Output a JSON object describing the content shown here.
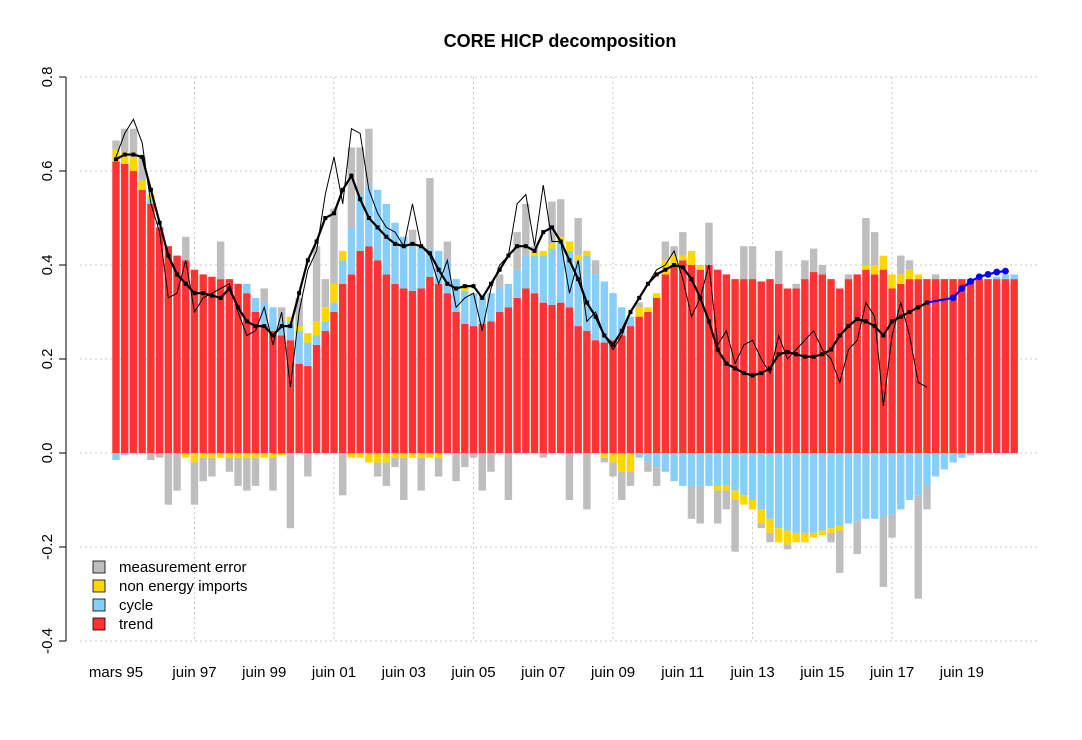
{
  "chart_data": {
    "type": "bar",
    "title": "CORE HICP decomposition",
    "xlabel": "",
    "ylabel": "",
    "ylim": [
      -0.4,
      0.8
    ],
    "yticks": [
      -0.4,
      -0.2,
      0.0,
      0.2,
      0.4,
      0.6,
      0.8
    ],
    "ytick_labels": [
      "-0.4",
      "-0.2",
      "0.0",
      "0.2",
      "0.4",
      "0.6",
      "0.8"
    ],
    "xtick_labels": [
      {
        "label": "mars 95",
        "index": 0
      },
      {
        "label": "juin 97",
        "index": 9
      },
      {
        "label": "juin 99",
        "index": 17
      },
      {
        "label": "juin 01",
        "index": 25
      },
      {
        "label": "juin 03",
        "index": 33
      },
      {
        "label": "juin 05",
        "index": 41
      },
      {
        "label": "juin 07",
        "index": 49
      },
      {
        "label": "juin 09",
        "index": 57
      },
      {
        "label": "juin 11",
        "index": 65
      },
      {
        "label": "juin 13",
        "index": 73
      },
      {
        "label": "juin 15",
        "index": 81
      },
      {
        "label": "juin 17",
        "index": 89
      },
      {
        "label": "juin 19",
        "index": 97
      }
    ],
    "grid": true,
    "legend_position": "bottom-left",
    "series": [
      {
        "name": "trend",
        "color": "#ff3333",
        "values": [
          0.62,
          0.615,
          0.6,
          0.56,
          0.53,
          0.48,
          0.44,
          0.42,
          0.41,
          0.39,
          0.38,
          0.375,
          0.37,
          0.37,
          0.36,
          0.34,
          0.3,
          0.27,
          0.26,
          0.25,
          0.24,
          0.19,
          0.185,
          0.23,
          0.26,
          0.3,
          0.36,
          0.38,
          0.43,
          0.44,
          0.41,
          0.38,
          0.36,
          0.35,
          0.345,
          0.35,
          0.375,
          0.36,
          0.34,
          0.3,
          0.275,
          0.27,
          0.275,
          0.28,
          0.3,
          0.31,
          0.33,
          0.35,
          0.34,
          0.32,
          0.315,
          0.32,
          0.31,
          0.27,
          0.26,
          0.24,
          0.235,
          0.24,
          0.25,
          0.27,
          0.29,
          0.3,
          0.33,
          0.38,
          0.4,
          0.41,
          0.4,
          0.39,
          0.4,
          0.39,
          0.38,
          0.37,
          0.37,
          0.37,
          0.365,
          0.37,
          0.36,
          0.35,
          0.35,
          0.37,
          0.385,
          0.38,
          0.37,
          0.35,
          0.37,
          0.38,
          0.39,
          0.38,
          0.39,
          0.35,
          0.36,
          0.37,
          0.37,
          0.37,
          0.37,
          0.37,
          0.37,
          0.37,
          0.37,
          0.37,
          0.37,
          0.37,
          0.37,
          0.37
        ]
      },
      {
        "name": "cycle",
        "color": "#87cefa",
        "values": [
          -0.015,
          -0.005,
          0,
          0,
          0.01,
          0,
          0,
          0,
          0,
          0,
          0,
          0,
          0,
          0,
          0,
          0.02,
          0.03,
          0.05,
          0.05,
          0.03,
          0.04,
          0.07,
          0.05,
          0.02,
          0.02,
          0.02,
          0.05,
          0.1,
          0.12,
          0.13,
          0.15,
          0.15,
          0.13,
          0.11,
          0.1,
          0.09,
          0.06,
          0.07,
          0.07,
          0.07,
          0.07,
          0.07,
          0.06,
          0.06,
          0.05,
          0.05,
          0.06,
          0.07,
          0.08,
          0.1,
          0.12,
          0.13,
          0.12,
          0.14,
          0.16,
          0.14,
          0.13,
          0.1,
          0.06,
          0.02,
          -0.01,
          -0.02,
          -0.03,
          -0.04,
          -0.06,
          -0.07,
          -0.07,
          -0.07,
          -0.07,
          -0.07,
          -0.07,
          -0.08,
          -0.09,
          -0.1,
          -0.12,
          -0.14,
          -0.16,
          -0.165,
          -0.17,
          -0.17,
          -0.17,
          -0.165,
          -0.16,
          -0.155,
          -0.15,
          -0.145,
          -0.14,
          -0.14,
          -0.135,
          -0.13,
          -0.12,
          -0.1,
          -0.09,
          -0.07,
          -0.05,
          -0.035,
          -0.02,
          -0.01,
          -0.005,
          0,
          0,
          0.005,
          0.01,
          0.01
        ]
      },
      {
        "name": "non energy imports",
        "color": "#ffd700",
        "values": [
          0.025,
          0.025,
          0.03,
          0.02,
          0.01,
          0,
          0,
          0,
          -0.01,
          -0.02,
          -0.01,
          -0.01,
          -0.01,
          -0.01,
          -0.01,
          -0.01,
          -0.01,
          -0.01,
          -0.01,
          -0.005,
          0.01,
          0.01,
          0.02,
          0.03,
          0.03,
          0.04,
          0.02,
          -0.01,
          -0.01,
          -0.02,
          -0.02,
          -0.02,
          -0.01,
          -0.01,
          -0.01,
          -0.01,
          -0.01,
          -0.01,
          0,
          0,
          0.01,
          0,
          0,
          0,
          0,
          0,
          0,
          0,
          0.01,
          0.01,
          0.01,
          0.01,
          0.02,
          0.01,
          0.01,
          0,
          -0.01,
          -0.02,
          -0.04,
          -0.04,
          0.02,
          0.01,
          0.01,
          0.03,
          0.02,
          0.01,
          0.03,
          0.01,
          0,
          -0.01,
          -0.01,
          -0.02,
          -0.02,
          -0.02,
          -0.03,
          -0.03,
          -0.03,
          -0.03,
          -0.02,
          -0.02,
          -0.01,
          -0.01,
          -0.01,
          -0.01,
          0,
          0,
          0.01,
          0.02,
          0.03,
          0.03,
          0.02,
          0.02,
          0.01,
          0,
          0,
          0,
          0,
          0,
          0,
          0,
          0,
          0,
          0,
          0
        ]
      },
      {
        "name": "measurement error",
        "color": "#bebebe",
        "values": [
          0.02,
          0.05,
          0.06,
          0.05,
          -0.015,
          -0.01,
          -0.11,
          -0.08,
          0.05,
          -0.09,
          -0.05,
          -0.04,
          0.08,
          -0.03,
          -0.06,
          -0.07,
          -0.06,
          0.03,
          -0.07,
          0.03,
          -0.16,
          0.06,
          -0.05,
          0.16,
          0.06,
          0.16,
          -0.09,
          0.17,
          0.1,
          0.12,
          -0.03,
          -0.05,
          -0.02,
          -0.09,
          0.03,
          -0.07,
          0.15,
          -0.04,
          0.04,
          -0.06,
          -0.03,
          -0.01,
          -0.08,
          -0.04,
          0.03,
          -0.1,
          0.08,
          0.11,
          0.01,
          -0.01,
          0.09,
          0.08,
          -0.1,
          0.08,
          -0.12,
          0.03,
          -0.01,
          -0.03,
          -0.06,
          -0.03,
          0.01,
          -0.02,
          -0.04,
          0.04,
          0.02,
          0.05,
          -0.07,
          -0.08,
          0.09,
          -0.07,
          -0.04,
          -0.11,
          0.07,
          0.07,
          -0.01,
          -0.02,
          0.07,
          -0.01,
          0.01,
          0.04,
          0.05,
          0.02,
          -0.02,
          -0.09,
          0.01,
          -0.07,
          0.1,
          0.07,
          -0.15,
          -0.05,
          0.04,
          0.02,
          -0.22,
          -0.05,
          0.01,
          0,
          0,
          0,
          0,
          0,
          0,
          0,
          0,
          0
        ]
      }
    ],
    "lines": [
      {
        "name": "smoothed",
        "color": "#000000",
        "values": [
          0.625,
          0.635,
          0.635,
          0.63,
          0.56,
          0.49,
          0.42,
          0.38,
          0.36,
          0.34,
          0.34,
          0.335,
          0.33,
          0.35,
          0.31,
          0.28,
          0.27,
          0.27,
          0.25,
          0.27,
          0.27,
          0.34,
          0.41,
          0.45,
          0.5,
          0.51,
          0.56,
          0.59,
          0.54,
          0.5,
          0.48,
          0.46,
          0.445,
          0.44,
          0.445,
          0.44,
          0.425,
          0.39,
          0.36,
          0.35,
          0.355,
          0.355,
          0.33,
          0.36,
          0.39,
          0.42,
          0.44,
          0.44,
          0.43,
          0.47,
          0.48,
          0.45,
          0.41,
          0.37,
          0.32,
          0.29,
          0.25,
          0.23,
          0.26,
          0.3,
          0.33,
          0.36,
          0.38,
          0.39,
          0.4,
          0.395,
          0.37,
          0.33,
          0.28,
          0.22,
          0.19,
          0.18,
          0.17,
          0.165,
          0.17,
          0.18,
          0.21,
          0.215,
          0.21,
          0.205,
          0.205,
          0.21,
          0.22,
          0.25,
          0.27,
          0.285,
          0.28,
          0.27,
          0.25,
          0.28,
          0.29,
          0.3,
          0.31,
          0.32
        ],
        "forecast": [
          {
            "index": 96,
            "value": 0.33
          },
          {
            "index": 97,
            "value": 0.35
          },
          {
            "index": 98,
            "value": 0.365
          },
          {
            "index": 99,
            "value": 0.375
          },
          {
            "index": 100,
            "value": 0.38
          },
          {
            "index": 101,
            "value": 0.385
          },
          {
            "index": 102,
            "value": 0.387
          }
        ],
        "forecast_color": "#0000ff"
      },
      {
        "name": "observed",
        "color": "#000000",
        "values": [
          0.63,
          0.68,
          0.71,
          0.66,
          0.53,
          0.47,
          0.33,
          0.34,
          0.41,
          0.3,
          0.33,
          0.34,
          0.35,
          0.36,
          0.3,
          0.25,
          0.26,
          0.31,
          0.23,
          0.3,
          0.14,
          0.3,
          0.39,
          0.43,
          0.55,
          0.63,
          0.53,
          0.69,
          0.68,
          0.56,
          0.51,
          0.48,
          0.47,
          0.44,
          0.53,
          0.44,
          0.42,
          0.36,
          0.41,
          0.31,
          0.33,
          0.34,
          0.26,
          0.35,
          0.4,
          0.42,
          0.53,
          0.55,
          0.44,
          0.57,
          0.45,
          0.45,
          0.34,
          0.41,
          0.28,
          0.3,
          0.25,
          0.22,
          0.25,
          0.3,
          0.33,
          0.36,
          0.39,
          0.4,
          0.43,
          0.37,
          0.29,
          0.33,
          0.4,
          0.23,
          0.26,
          0.19,
          0.23,
          0.24,
          0.2,
          0.17,
          0.25,
          0.2,
          0.22,
          0.24,
          0.26,
          0.22,
          0.2,
          0.15,
          0.22,
          0.24,
          0.32,
          0.29,
          0.1,
          0.25,
          0.32,
          0.25,
          0.15,
          0.14
        ]
      }
    ]
  }
}
